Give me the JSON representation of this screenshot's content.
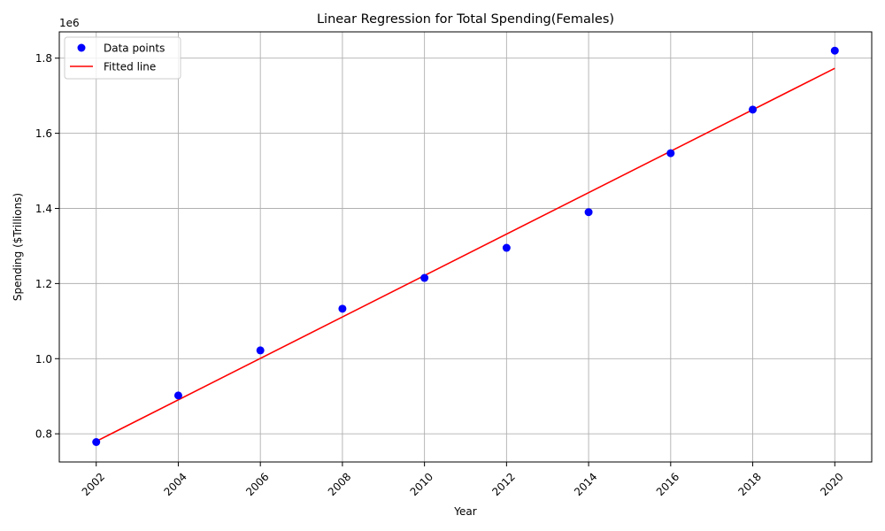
{
  "chart_data": {
    "type": "scatter",
    "title": "Linear Regression for Total Spending(Females)",
    "xlabel": "Year",
    "ylabel": "Spending ($Trillions)",
    "offset_text": "1e6",
    "x_ticks": [
      2002,
      2004,
      2006,
      2008,
      2010,
      2012,
      2014,
      2016,
      2018,
      2020
    ],
    "y_ticks": [
      0.8,
      1.0,
      1.2,
      1.4,
      1.6,
      1.8
    ],
    "y_tick_labels": [
      "0.8",
      "1.0",
      "1.2",
      "1.4",
      "1.6",
      "1.8"
    ],
    "xlim": [
      2001.1,
      2020.9
    ],
    "ylim": [
      725000,
      1870000
    ],
    "grid": true,
    "legend_position": "upper left",
    "series": [
      {
        "name": "Data points",
        "kind": "scatter",
        "color": "#0000ff",
        "x": [
          2002,
          2004,
          2006,
          2008,
          2010,
          2012,
          2014,
          2016,
          2018,
          2020
        ],
        "y": [
          778000,
          902000,
          1022000,
          1133000,
          1215000,
          1295000,
          1390000,
          1547000,
          1663000,
          1820000
        ]
      },
      {
        "name": "Fitted line",
        "kind": "line",
        "color": "#ff0000",
        "x": [
          2002,
          2020
        ],
        "y": [
          780000,
          1773000
        ]
      }
    ]
  }
}
